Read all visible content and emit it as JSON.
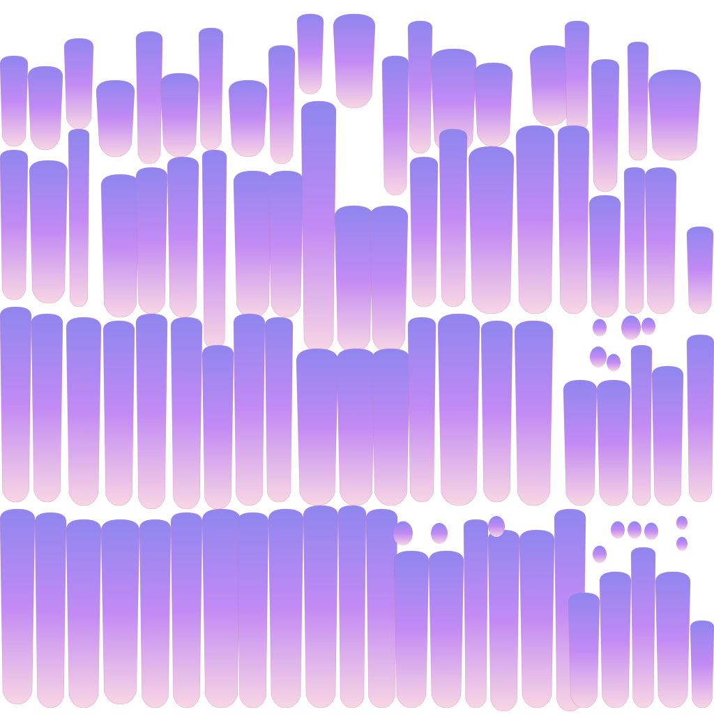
{
  "colors": {
    "background": "#ffffff",
    "gradient_top": "#8f86ee",
    "gradient_mid": "#c28af4",
    "gradient_bottom": "#f8d6e4",
    "outline": "#c77ab9"
  },
  "icons": [
    "brush-stroke-icon"
  ]
}
